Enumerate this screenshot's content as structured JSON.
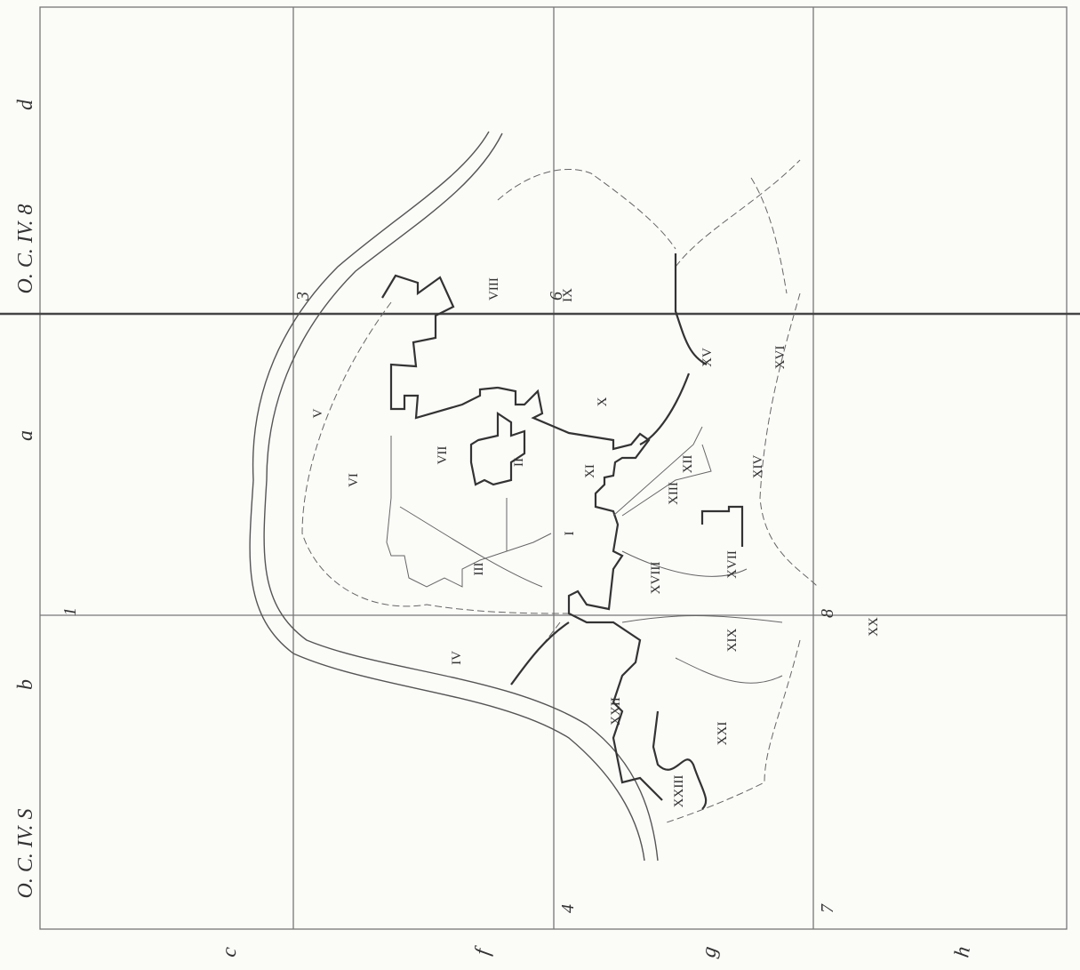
{
  "margin": {
    "left": [
      "O. C. IV. 8",
      "d",
      "a",
      "b",
      "O. C. IV. S"
    ],
    "bottom": [
      "c",
      "f",
      "g",
      "h"
    ]
  },
  "sheets": [
    "3",
    "6",
    "1",
    "4",
    "8",
    "7"
  ],
  "parcels": [
    "I",
    "II",
    "III",
    "IV",
    "V",
    "VI",
    "VII",
    "VIII",
    "IX",
    "X",
    "XI",
    "XII",
    "XIII",
    "XIV",
    "XV",
    "XVI",
    "XVII",
    "XVIII",
    "XIX",
    "XX",
    "XXI",
    "XXII",
    "XXIII"
  ]
}
